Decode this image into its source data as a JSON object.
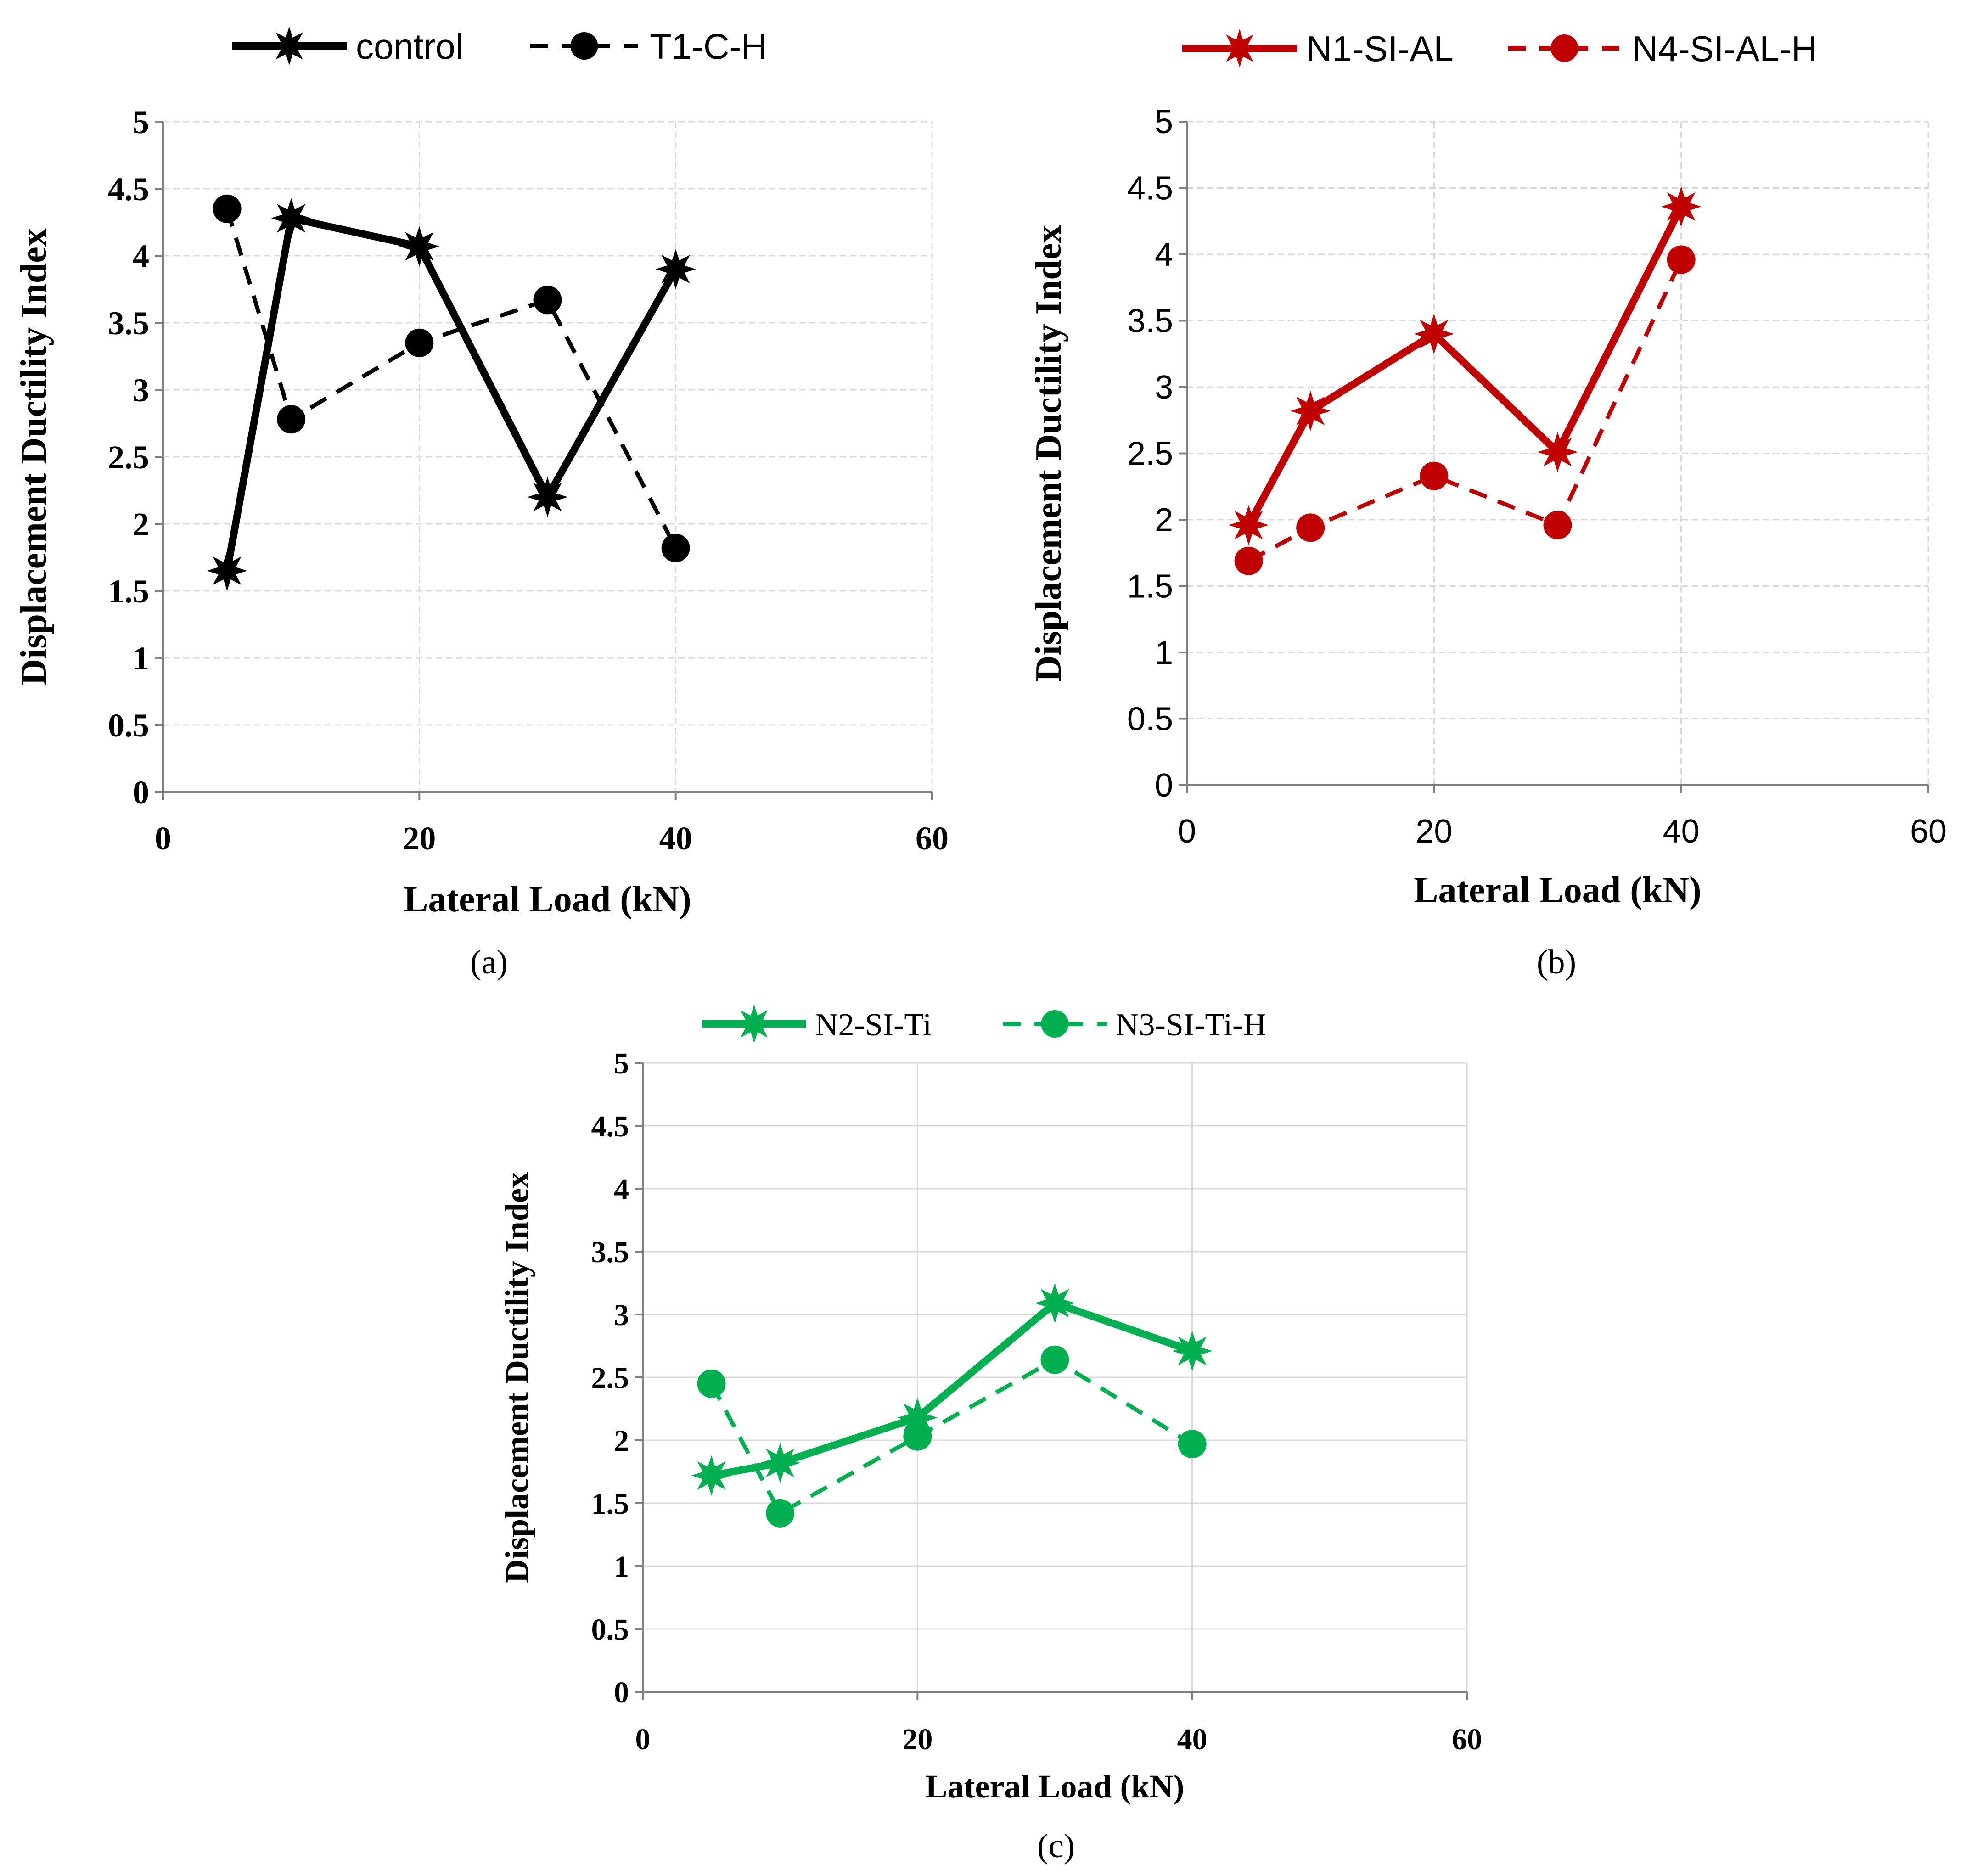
{
  "chart_data": [
    {
      "type": "line",
      "panel_label": "(a)",
      "xlabel": "Lateral Load (kN)",
      "ylabel": "Displacement Ductility Index",
      "xlim": [
        0,
        60
      ],
      "ylim": [
        0,
        5
      ],
      "xticks": [
        "0",
        "20",
        "40",
        "60"
      ],
      "yticks": [
        "0",
        "0.5",
        "1",
        "1.5",
        "2",
        "2.5",
        "3",
        "3.5",
        "4",
        "4.5",
        "5"
      ],
      "grid": true,
      "legend_position": "top",
      "color": "#000000",
      "series": [
        {
          "name": "control",
          "style": "solid",
          "marker": "star",
          "x": [
            5,
            10,
            20,
            30,
            40
          ],
          "values": [
            1.65,
            4.28,
            4.07,
            2.2,
            3.9
          ]
        },
        {
          "name": "T1-C-H",
          "style": "dashed",
          "marker": "circle",
          "x": [
            5,
            10,
            20,
            30,
            40
          ],
          "values": [
            4.35,
            2.78,
            3.35,
            3.67,
            1.82
          ]
        }
      ]
    },
    {
      "type": "line",
      "panel_label": "(b)",
      "xlabel": "Lateral Load (kN)",
      "ylabel": "Displacement Ductility Index",
      "xlim": [
        0,
        60
      ],
      "ylim": [
        0,
        5
      ],
      "xticks": [
        "0",
        "20",
        "40",
        "60"
      ],
      "yticks": [
        "0",
        "0.5",
        "1",
        "1.5",
        "2",
        "2.5",
        "3",
        "3.5",
        "4",
        "4.5",
        "5"
      ],
      "grid": true,
      "legend_position": "top",
      "color": "#c00000",
      "series": [
        {
          "name": "N1-SI-AL",
          "style": "solid",
          "marker": "star",
          "x": [
            5,
            10,
            20,
            30,
            40
          ],
          "values": [
            1.96,
            2.82,
            3.4,
            2.51,
            4.36
          ]
        },
        {
          "name": "N4-SI-AL-H",
          "style": "dashed",
          "marker": "circle",
          "x": [
            5,
            10,
            20,
            30,
            40
          ],
          "values": [
            1.69,
            1.94,
            2.33,
            1.96,
            3.96
          ]
        }
      ]
    },
    {
      "type": "line",
      "panel_label": "(c)",
      "xlabel": "Lateral Load (kN)",
      "ylabel": "Displacement Ductility Index",
      "xlim": [
        0,
        60
      ],
      "ylim": [
        0,
        5
      ],
      "xticks": [
        "0",
        "20",
        "40",
        "60"
      ],
      "yticks": [
        "0",
        "0.5",
        "1",
        "1.5",
        "2",
        "2.5",
        "3",
        "3.5",
        "4",
        "4.5",
        "5"
      ],
      "grid": true,
      "legend_position": "top",
      "color": "#00b050",
      "series": [
        {
          "name": "N2-SI-Ti",
          "style": "solid",
          "marker": "star",
          "x": [
            5,
            10,
            20,
            30,
            40
          ],
          "values": [
            1.72,
            1.82,
            2.18,
            3.09,
            2.71
          ]
        },
        {
          "name": "N3-SI-Ti-H",
          "style": "dashed",
          "marker": "circle",
          "x": [
            5,
            10,
            20,
            30,
            40
          ],
          "values": [
            2.45,
            1.42,
            2.03,
            2.64,
            1.97
          ]
        }
      ]
    }
  ]
}
